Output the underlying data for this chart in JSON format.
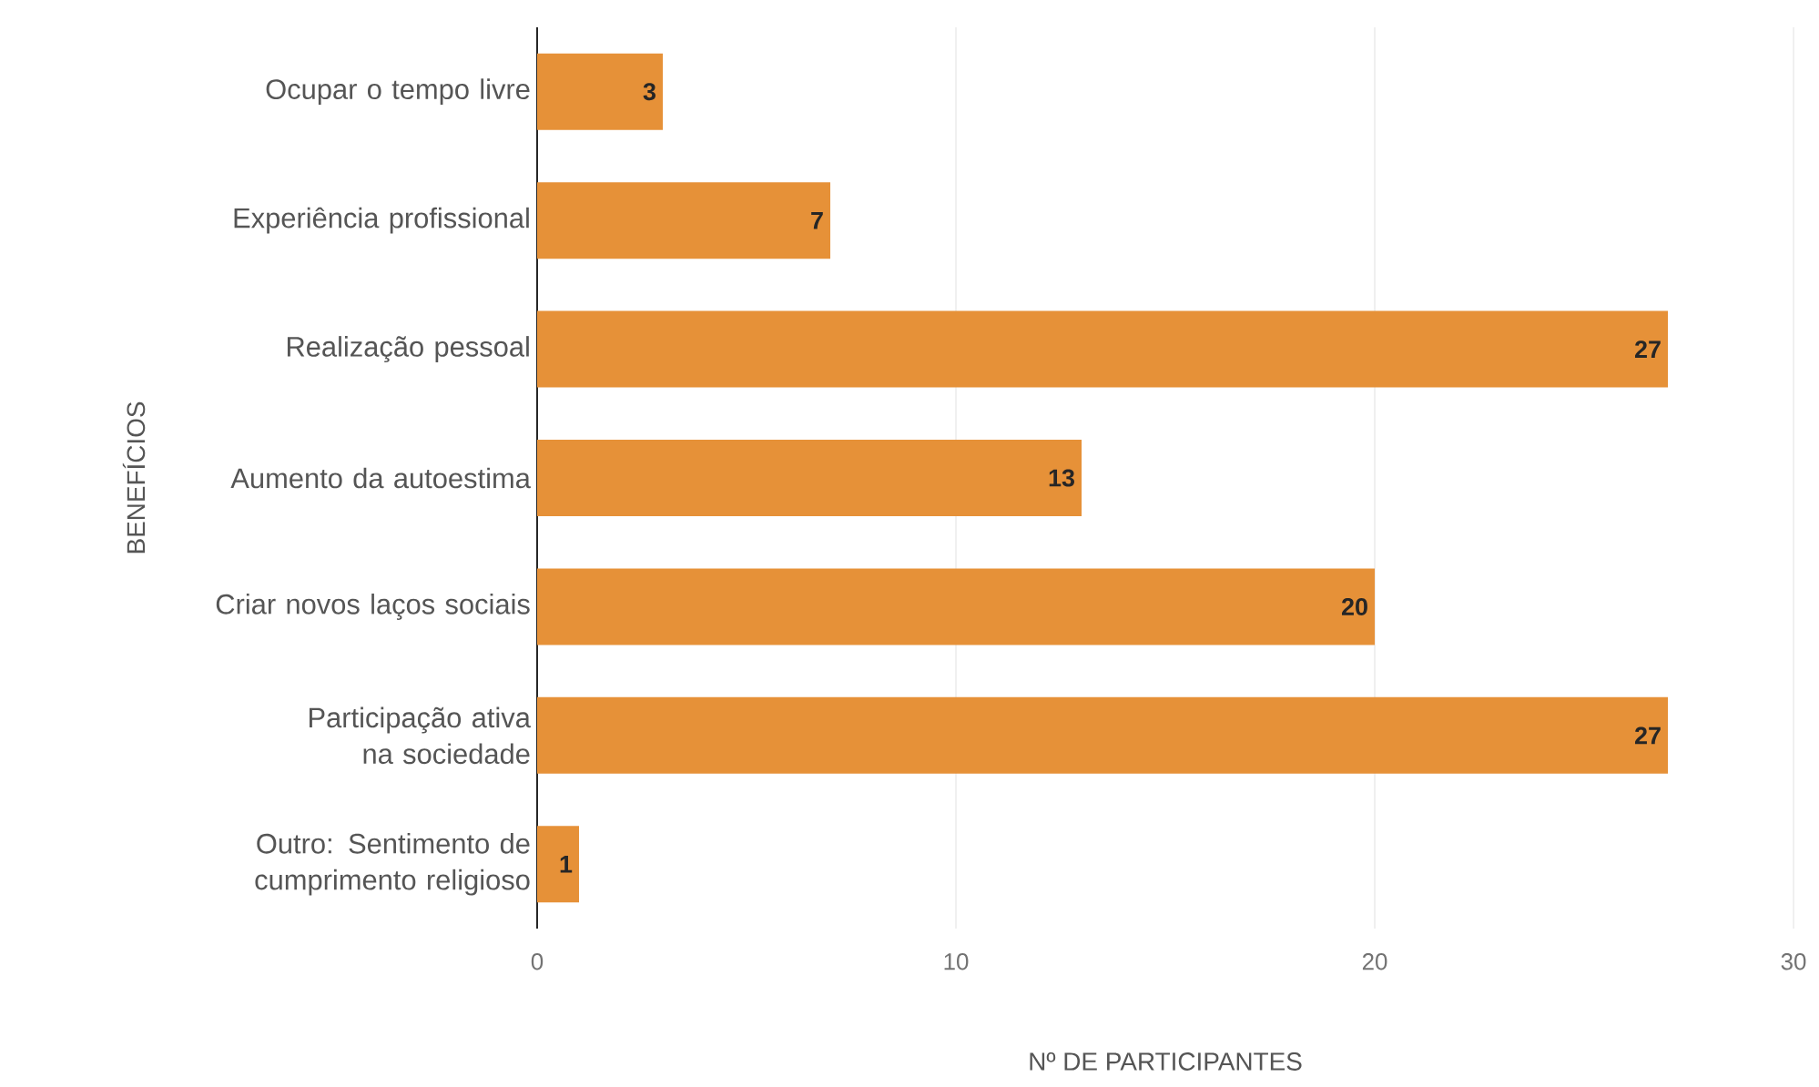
{
  "chart_data": {
    "type": "bar",
    "orientation": "horizontal",
    "xlabel": "Nº DE PARTICIPANTES",
    "ylabel": "BENEFÍCIOS",
    "categories": [
      "Ocupar o tempo livre",
      "Experiência profissional",
      "Realização pessoal",
      "Aumento da autoestima",
      "Criar novos laços sociais",
      "Participação ativa na sociedade",
      "Outro: Sentimento de cumprimento religioso"
    ],
    "values": [
      3,
      7,
      27,
      13,
      20,
      27,
      1
    ],
    "color": "#e69138",
    "xlim": [
      0,
      30
    ],
    "xticks": [
      0,
      10,
      20,
      30
    ],
    "grid": "x",
    "data_labels": true
  }
}
